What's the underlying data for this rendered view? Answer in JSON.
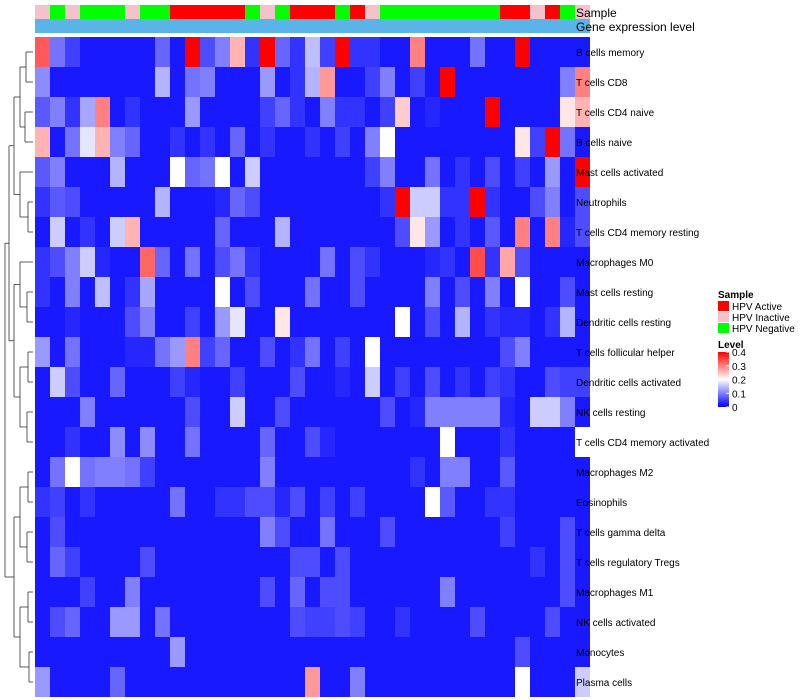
{
  "chart_data": {
    "type": "heatmap",
    "track_labels": [
      "Sample",
      "Gene expression level"
    ],
    "rows": [
      "B cells memory",
      "T cells CD8",
      "T cells CD4 naive",
      "B cells naive",
      "Mast cells activated",
      "Neutrophils",
      "T cells CD4 memory resting",
      "Macrophages M0",
      "Mast cells resting",
      "Dendritic cells resting",
      "T cells follicular helper",
      "Dendritic cells activated",
      "NK cells resting",
      "T cells CD4 memory activated",
      "Macrophages M2",
      "Eosinophils",
      "T cells gamma delta",
      "T cells regulatory  Tregs",
      "Macrophages M1",
      "NK cells activated",
      "Monocytes",
      "Plasma cells"
    ],
    "samples": [
      "Inactive",
      "Negative",
      "Inactive",
      "Negative",
      "Negative",
      "Negative",
      "Inactive",
      "Negative",
      "Negative",
      "Active",
      "Active",
      "Active",
      "Active",
      "Active",
      "Negative",
      "Inactive",
      "Negative",
      "Active",
      "Active",
      "Active",
      "Negative",
      "Active",
      "Inactive",
      "Negative",
      "Negative",
      "Negative",
      "Negative",
      "Negative",
      "Negative",
      "Negative",
      "Negative",
      "Active",
      "Active",
      "Inactive",
      "Active",
      "Negative",
      "Inactive"
    ],
    "values": [
      [
        0.33,
        0.09,
        0.05,
        0.02,
        0.02,
        0.02,
        0.02,
        0.02,
        0.08,
        0.02,
        0.4,
        0.06,
        0.1,
        0.26,
        0.04,
        0.4,
        0.08,
        0.04,
        0.15,
        0.05,
        0.4,
        0.04,
        0.04,
        0.02,
        0.02,
        0.3,
        0.02,
        0.02,
        0.02,
        0.09,
        0.02,
        0.02,
        0.4,
        0.02,
        0.02,
        0.02,
        0.02
      ],
      [
        0.11,
        0.02,
        0.02,
        0.02,
        0.02,
        0.02,
        0.02,
        0.02,
        0.14,
        0.02,
        0.09,
        0.1,
        0.02,
        0.02,
        0.02,
        0.12,
        0.02,
        0.04,
        0.14,
        0.28,
        0.02,
        0.02,
        0.05,
        0.1,
        0.02,
        0.05,
        0.02,
        0.4,
        0.02,
        0.02,
        0.02,
        0.02,
        0.02,
        0.02,
        0.02,
        0.1,
        0.3
      ],
      [
        0.07,
        0.1,
        0.04,
        0.13,
        0.3,
        0.02,
        0.04,
        0.02,
        0.02,
        0.02,
        0.12,
        0.02,
        0.02,
        0.02,
        0.02,
        0.05,
        0.08,
        0.04,
        0.02,
        0.1,
        0.04,
        0.04,
        0.02,
        0.05,
        0.24,
        0.02,
        0.03,
        0.02,
        0.02,
        0.02,
        0.4,
        0.02,
        0.02,
        0.02,
        0.02,
        0.22,
        0.26
      ],
      [
        0.26,
        0.02,
        0.09,
        0.18,
        0.26,
        0.1,
        0.08,
        0.02,
        0.02,
        0.04,
        0.02,
        0.04,
        0.02,
        0.08,
        0.02,
        0.04,
        0.02,
        0.02,
        0.04,
        0.02,
        0.05,
        0.02,
        0.1,
        0.2,
        0.02,
        0.02,
        0.02,
        0.02,
        0.02,
        0.02,
        0.02,
        0.02,
        0.22,
        0.05,
        0.4,
        0.09,
        0.02
      ],
      [
        0.07,
        0.1,
        0.02,
        0.02,
        0.02,
        0.14,
        0.02,
        0.02,
        0.02,
        0.2,
        0.08,
        0.09,
        0.2,
        0.02,
        0.16,
        0.02,
        0.02,
        0.02,
        0.02,
        0.02,
        0.02,
        0.02,
        0.05,
        0.1,
        0.02,
        0.02,
        0.09,
        0.02,
        0.04,
        0.02,
        0.06,
        0.02,
        0.05,
        0.02,
        0.12,
        0.02,
        0.4
      ],
      [
        0.04,
        0.07,
        0.06,
        0.02,
        0.02,
        0.02,
        0.02,
        0.02,
        0.14,
        0.02,
        0.02,
        0.02,
        0.03,
        0.08,
        0.06,
        0.02,
        0.02,
        0.02,
        0.02,
        0.02,
        0.02,
        0.02,
        0.02,
        0.04,
        0.4,
        0.16,
        0.16,
        0.04,
        0.04,
        0.4,
        0.04,
        0.02,
        0.02,
        0.06,
        0.1,
        0.02,
        0.06
      ],
      [
        0.02,
        0.16,
        0.02,
        0.04,
        0.02,
        0.16,
        0.26,
        0.02,
        0.02,
        0.02,
        0.02,
        0.02,
        0.08,
        0.02,
        0.02,
        0.02,
        0.14,
        0.02,
        0.02,
        0.02,
        0.02,
        0.02,
        0.02,
        0.02,
        0.06,
        0.22,
        0.12,
        0.02,
        0.04,
        0.02,
        0.07,
        0.02,
        0.3,
        0.02,
        0.3,
        0.03,
        0.06
      ],
      [
        0.04,
        0.06,
        0.1,
        0.16,
        0.03,
        0.02,
        0.02,
        0.32,
        0.08,
        0.02,
        0.09,
        0.02,
        0.06,
        0.09,
        0.04,
        0.02,
        0.02,
        0.02,
        0.02,
        0.09,
        0.02,
        0.06,
        0.04,
        0.02,
        0.02,
        0.02,
        0.03,
        0.04,
        0.02,
        0.34,
        0.04,
        0.27,
        0.06,
        0.02,
        0.02,
        0.02,
        0.02
      ],
      [
        0.04,
        0.02,
        0.1,
        0.02,
        0.15,
        0.02,
        0.04,
        0.13,
        0.02,
        0.02,
        0.02,
        0.02,
        0.2,
        0.02,
        0.06,
        0.02,
        0.02,
        0.02,
        0.09,
        0.02,
        0.02,
        0.06,
        0.02,
        0.02,
        0.02,
        0.02,
        0.1,
        0.02,
        0.06,
        0.02,
        0.1,
        0.02,
        0.2,
        0.02,
        0.02,
        0.06,
        0.02
      ],
      [
        0.02,
        0.02,
        0.03,
        0.02,
        0.02,
        0.02,
        0.06,
        0.1,
        0.02,
        0.02,
        0.05,
        0.02,
        0.12,
        0.18,
        0.02,
        0.02,
        0.22,
        0.02,
        0.02,
        0.02,
        0.02,
        0.02,
        0.02,
        0.02,
        0.2,
        0.02,
        0.06,
        0.02,
        0.14,
        0.02,
        0.04,
        0.03,
        0.03,
        0.02,
        0.04,
        0.14,
        0.02
      ],
      [
        0.12,
        0.02,
        0.09,
        0.02,
        0.02,
        0.02,
        0.03,
        0.03,
        0.09,
        0.12,
        0.3,
        0.05,
        0.08,
        0.02,
        0.02,
        0.06,
        0.02,
        0.04,
        0.09,
        0.02,
        0.05,
        0.02,
        0.2,
        0.02,
        0.02,
        0.02,
        0.02,
        0.02,
        0.02,
        0.02,
        0.02,
        0.06,
        0.1,
        0.02,
        0.02,
        0.02,
        0.02
      ],
      [
        0.02,
        0.16,
        0.06,
        0.02,
        0.02,
        0.08,
        0.02,
        0.02,
        0.02,
        0.05,
        0.03,
        0.02,
        0.02,
        0.05,
        0.02,
        0.02,
        0.02,
        0.06,
        0.02,
        0.02,
        0.03,
        0.02,
        0.16,
        0.02,
        0.05,
        0.02,
        0.06,
        0.02,
        0.04,
        0.02,
        0.05,
        0.04,
        0.02,
        0.02,
        0.06,
        0.05,
        0.05
      ],
      [
        0.02,
        0.02,
        0.02,
        0.1,
        0.02,
        0.02,
        0.02,
        0.02,
        0.02,
        0.02,
        0.06,
        0.02,
        0.02,
        0.16,
        0.02,
        0.02,
        0.06,
        0.02,
        0.02,
        0.02,
        0.02,
        0.02,
        0.02,
        0.06,
        0.02,
        0.03,
        0.1,
        0.1,
        0.1,
        0.1,
        0.1,
        0.03,
        0.02,
        0.16,
        0.16,
        0.1,
        0.02
      ],
      [
        0.02,
        0.02,
        0.04,
        0.02,
        0.02,
        0.11,
        0.02,
        0.11,
        0.02,
        0.02,
        0.09,
        0.02,
        0.02,
        0.02,
        0.02,
        0.08,
        0.02,
        0.02,
        0.06,
        0.03,
        0.02,
        0.02,
        0.02,
        0.02,
        0.02,
        0.02,
        0.02,
        0.2,
        0.02,
        0.02,
        0.02,
        0.04,
        0.02,
        0.02,
        0.02,
        0.02,
        0.2
      ],
      [
        0.02,
        0.09,
        0.2,
        0.09,
        0.1,
        0.1,
        0.09,
        0.05,
        0.02,
        0.02,
        0.02,
        0.02,
        0.02,
        0.02,
        0.02,
        0.1,
        0.02,
        0.02,
        0.02,
        0.02,
        0.02,
        0.02,
        0.02,
        0.02,
        0.02,
        0.04,
        0.02,
        0.1,
        0.1,
        0.02,
        0.02,
        0.07,
        0.02,
        0.02,
        0.02,
        0.02,
        0.02
      ],
      [
        0.04,
        0.05,
        0.02,
        0.04,
        0.02,
        0.02,
        0.02,
        0.02,
        0.02,
        0.09,
        0.02,
        0.02,
        0.04,
        0.04,
        0.06,
        0.06,
        0.03,
        0.06,
        0.02,
        0.05,
        0.02,
        0.05,
        0.02,
        0.02,
        0.02,
        0.02,
        0.2,
        0.07,
        0.02,
        0.02,
        0.04,
        0.04,
        0.02,
        0.02,
        0.02,
        0.02,
        0.02
      ],
      [
        0.02,
        0.06,
        0.02,
        0.02,
        0.02,
        0.02,
        0.02,
        0.02,
        0.02,
        0.02,
        0.02,
        0.02,
        0.02,
        0.02,
        0.02,
        0.1,
        0.06,
        0.02,
        0.02,
        0.09,
        0.02,
        0.02,
        0.02,
        0.06,
        0.02,
        0.02,
        0.02,
        0.02,
        0.02,
        0.02,
        0.02,
        0.05,
        0.02,
        0.02,
        0.02,
        0.06,
        0.02
      ],
      [
        0.02,
        0.08,
        0.05,
        0.02,
        0.02,
        0.02,
        0.02,
        0.06,
        0.02,
        0.02,
        0.02,
        0.02,
        0.02,
        0.02,
        0.02,
        0.02,
        0.02,
        0.06,
        0.06,
        0.02,
        0.06,
        0.02,
        0.02,
        0.02,
        0.02,
        0.02,
        0.02,
        0.02,
        0.02,
        0.02,
        0.02,
        0.02,
        0.02,
        0.04,
        0.02,
        0.06,
        0.02
      ],
      [
        0.02,
        0.02,
        0.02,
        0.05,
        0.02,
        0.02,
        0.1,
        0.02,
        0.02,
        0.02,
        0.02,
        0.02,
        0.02,
        0.02,
        0.02,
        0.06,
        0.02,
        0.08,
        0.02,
        0.06,
        0.06,
        0.02,
        0.02,
        0.02,
        0.02,
        0.02,
        0.02,
        0.1,
        0.02,
        0.02,
        0.02,
        0.02,
        0.02,
        0.02,
        0.02,
        0.06,
        0.02
      ],
      [
        0.02,
        0.06,
        0.08,
        0.02,
        0.02,
        0.12,
        0.12,
        0.02,
        0.09,
        0.02,
        0.02,
        0.02,
        0.02,
        0.02,
        0.02,
        0.02,
        0.02,
        0.06,
        0.05,
        0.05,
        0.06,
        0.05,
        0.02,
        0.02,
        0.04,
        0.02,
        0.02,
        0.02,
        0.02,
        0.06,
        0.02,
        0.02,
        0.02,
        0.02,
        0.06,
        0.02,
        0.02
      ],
      [
        0.02,
        0.02,
        0.02,
        0.02,
        0.02,
        0.02,
        0.02,
        0.02,
        0.02,
        0.12,
        0.02,
        0.02,
        0.02,
        0.02,
        0.02,
        0.02,
        0.02,
        0.02,
        0.02,
        0.02,
        0.02,
        0.02,
        0.02,
        0.02,
        0.02,
        0.02,
        0.02,
        0.02,
        0.02,
        0.02,
        0.02,
        0.02,
        0.06,
        0.02,
        0.02,
        0.02,
        0.02
      ],
      [
        0.12,
        0.02,
        0.02,
        0.02,
        0.02,
        0.08,
        0.02,
        0.02,
        0.02,
        0.02,
        0.02,
        0.02,
        0.02,
        0.02,
        0.02,
        0.02,
        0.02,
        0.02,
        0.28,
        0.02,
        0.02,
        0.1,
        0.02,
        0.02,
        0.02,
        0.02,
        0.02,
        0.02,
        0.02,
        0.02,
        0.02,
        0.02,
        0.2,
        0.02,
        0.02,
        0.02,
        0.16
      ]
    ],
    "color_scale": {
      "min": 0,
      "max": 0.4,
      "stops": [
        {
          "value": 0,
          "color": "#0000ff"
        },
        {
          "value": 0.2,
          "color": "#ffffff"
        },
        {
          "value": 0.4,
          "color": "#ff0000"
        }
      ]
    },
    "gene_expression_color": "#5ab4e8",
    "legend": {
      "sample_title": "Sample",
      "sample_items": [
        {
          "key": "Active",
          "label": "HPV Active",
          "color": "#ff0000"
        },
        {
          "key": "Inactive",
          "label": "HPV Inactive",
          "color": "#f4c2cc"
        },
        {
          "key": "Negative",
          "label": "HPV Negative",
          "color": "#00ff00"
        }
      ],
      "level_title": "Level",
      "level_ticks": [
        {
          "value": 0.4,
          "label": "0.4"
        },
        {
          "value": 0.3,
          "label": "0.3"
        },
        {
          "value": 0.2,
          "label": "0.2"
        },
        {
          "value": 0.1,
          "label": "0.1"
        },
        {
          "value": 0,
          "label": "0"
        }
      ]
    },
    "dendrogram_order": [
      21,
      20,
      19,
      18,
      17,
      16,
      15,
      14,
      13,
      12,
      11,
      10,
      9,
      8,
      7,
      6,
      5,
      4,
      3,
      2,
      1,
      0
    ]
  }
}
